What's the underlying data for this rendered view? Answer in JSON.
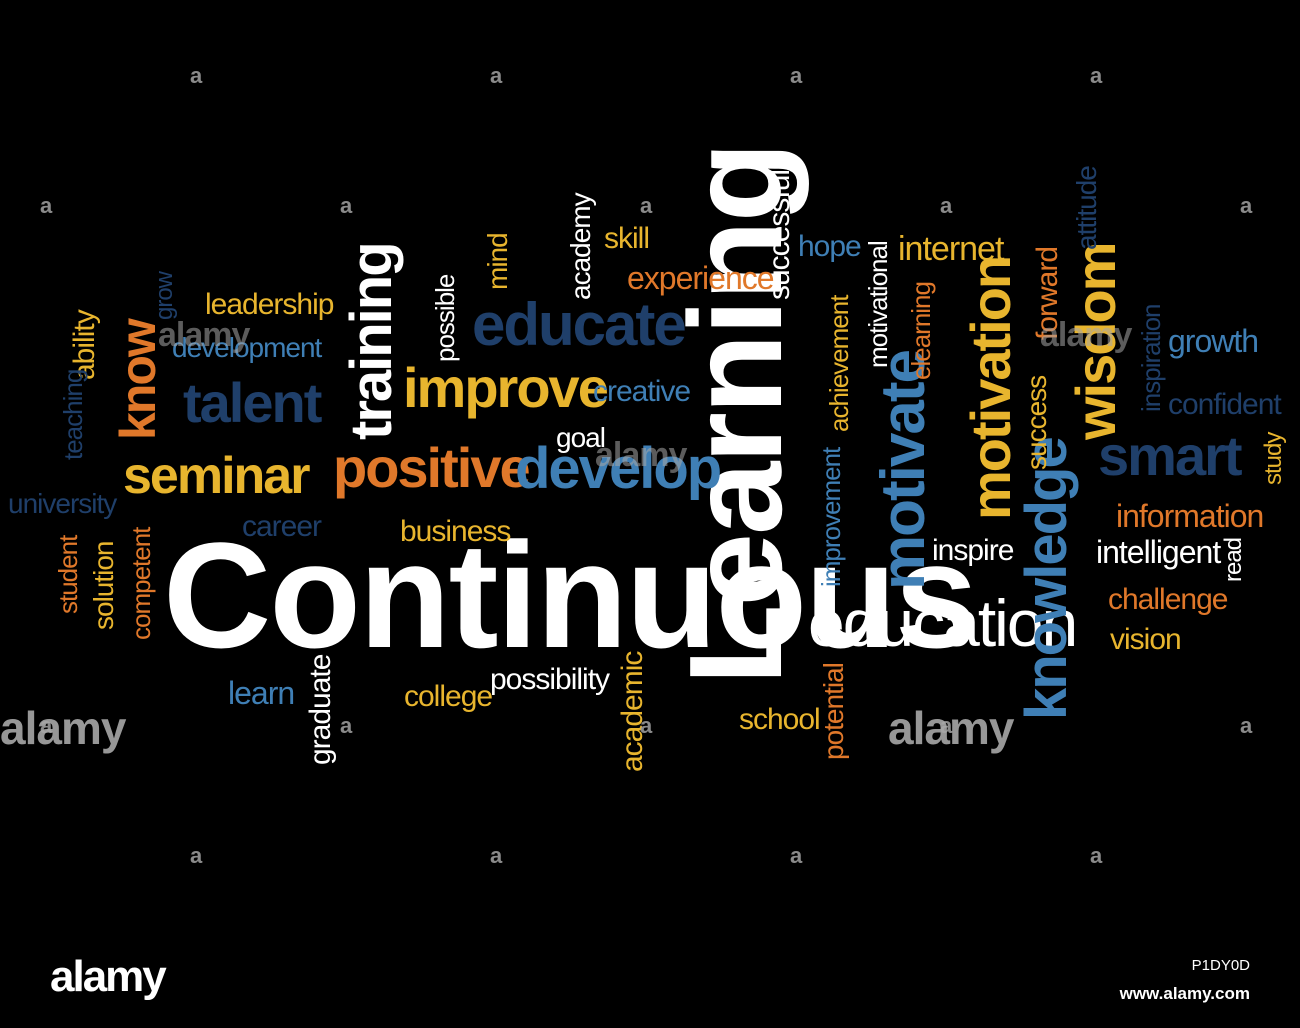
{
  "background_color": "#000000",
  "colors": {
    "white": "#ffffff",
    "gold": "#e8b52e",
    "orange": "#e0782a",
    "steel_blue": "#3f7fb5",
    "navy": "#1f3f6a",
    "gray": "#bfbfbf"
  },
  "words": [
    {
      "text": "Continuous",
      "color": "#ffffff"
    },
    {
      "text": "Learning",
      "color": "#ffffff"
    },
    {
      "text": "education",
      "color": "#ffffff"
    },
    {
      "text": "training",
      "color": "#ffffff"
    },
    {
      "text": "improve",
      "color": "#e8b52e"
    },
    {
      "text": "positive",
      "color": "#e0782a"
    },
    {
      "text": "develop",
      "color": "#3f7fb5"
    },
    {
      "text": "educate",
      "color": "#1f3f6a"
    },
    {
      "text": "seminar",
      "color": "#e8b52e"
    },
    {
      "text": "talent",
      "color": "#1f3f6a"
    },
    {
      "text": "know",
      "color": "#e0782a"
    },
    {
      "text": "motivate",
      "color": "#3f7fb5"
    },
    {
      "text": "motivation",
      "color": "#e8b52e"
    },
    {
      "text": "knowledge",
      "color": "#3f7fb5"
    },
    {
      "text": "wisdom",
      "color": "#e8b52e"
    },
    {
      "text": "smart",
      "color": "#1f3f6a"
    },
    {
      "text": "inspire",
      "color": "#ffffff"
    },
    {
      "text": "intelligent",
      "color": "#ffffff"
    },
    {
      "text": "information",
      "color": "#e0782a"
    },
    {
      "text": "challenge",
      "color": "#e0782a"
    },
    {
      "text": "vision",
      "color": "#e8b52e"
    },
    {
      "text": "read",
      "color": "#ffffff"
    },
    {
      "text": "study",
      "color": "#e8b52e"
    },
    {
      "text": "confident",
      "color": "#1f3f6a"
    },
    {
      "text": "growth",
      "color": "#3f7fb5"
    },
    {
      "text": "inspiration",
      "color": "#1f3f6a"
    },
    {
      "text": "success",
      "color": "#e8b52e"
    },
    {
      "text": "forward",
      "color": "#e0782a"
    },
    {
      "text": "attitude",
      "color": "#1f3f6a"
    },
    {
      "text": "internet",
      "color": "#e8b52e"
    },
    {
      "text": "hope",
      "color": "#3f7fb5"
    },
    {
      "text": "motivational",
      "color": "#ffffff"
    },
    {
      "text": "elearning",
      "color": "#e0782a"
    },
    {
      "text": "achievement",
      "color": "#e8b52e"
    },
    {
      "text": "improvement",
      "color": "#3f7fb5"
    },
    {
      "text": "successful",
      "color": "#ffffff"
    },
    {
      "text": "experience",
      "color": "#e0782a"
    },
    {
      "text": "skill",
      "color": "#e8b52e"
    },
    {
      "text": "academy",
      "color": "#ffffff"
    },
    {
      "text": "creative",
      "color": "#3f7fb5"
    },
    {
      "text": "goal",
      "color": "#ffffff"
    },
    {
      "text": "mind",
      "color": "#e8b52e"
    },
    {
      "text": "possible",
      "color": "#ffffff"
    },
    {
      "text": "leadership",
      "color": "#e8b52e"
    },
    {
      "text": "development",
      "color": "#3f7fb5"
    },
    {
      "text": "grow",
      "color": "#1f3f6a"
    },
    {
      "text": "ability",
      "color": "#e8b52e"
    },
    {
      "text": "teaching",
      "color": "#1f3f6a"
    },
    {
      "text": "university",
      "color": "#1f3f6a"
    },
    {
      "text": "career",
      "color": "#1f3f6a"
    },
    {
      "text": "business",
      "color": "#e8b52e"
    },
    {
      "text": "student",
      "color": "#e0782a"
    },
    {
      "text": "solution",
      "color": "#e8b52e"
    },
    {
      "text": "competent",
      "color": "#e0782a"
    },
    {
      "text": "learn",
      "color": "#3f7fb5"
    },
    {
      "text": "graduate",
      "color": "#ffffff"
    },
    {
      "text": "college",
      "color": "#e8b52e"
    },
    {
      "text": "possibility",
      "color": "#ffffff"
    },
    {
      "text": "academic",
      "color": "#e8b52e"
    },
    {
      "text": "school",
      "color": "#e8b52e"
    },
    {
      "text": "potential",
      "color": "#e0782a"
    }
  ],
  "watermark": {
    "letter": "a",
    "word": "alamy"
  },
  "footer": {
    "logo": "alamy",
    "image_id": "P1DY0D",
    "url": "www.alamy.com"
  }
}
